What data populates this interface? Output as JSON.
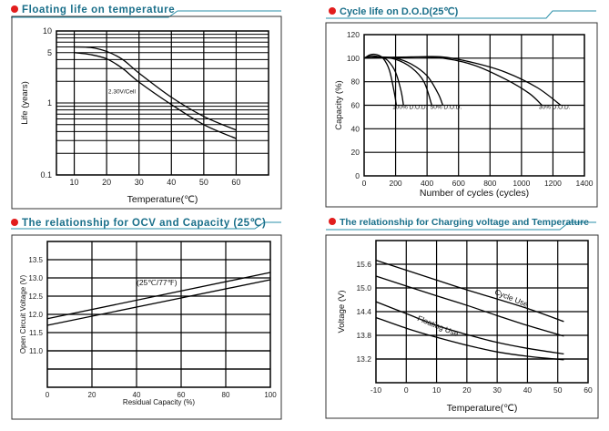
{
  "colors": {
    "title": "#1a6f8a",
    "bullet": "#e21d1d",
    "line": "#000000"
  },
  "chart_data": [
    {
      "id": "c1",
      "type": "line",
      "title": "Floating life on temperature",
      "xlabel": "Temperature(℃)",
      "ylabel": "Life (years)",
      "xlim": [
        4.5,
        70
      ],
      "ylim": [
        0.1,
        10
      ],
      "yscale": "log",
      "grid": true,
      "xticks": [
        10,
        20,
        30,
        40,
        50,
        60
      ],
      "yticks": [
        0.1,
        1,
        5,
        10
      ],
      "annotations": [
        {
          "text": "2.30V/Cell",
          "x": 20.5,
          "y": 1.35
        }
      ],
      "series": [
        {
          "x": [
            10,
            15,
            20,
            25,
            30,
            40,
            50,
            60
          ],
          "y": [
            6.0,
            5.9,
            5.2,
            4.0,
            2.6,
            1.2,
            0.65,
            0.42
          ]
        },
        {
          "x": [
            10,
            15,
            20,
            25,
            30,
            40,
            50,
            60
          ],
          "y": [
            5.0,
            4.7,
            4.1,
            3.0,
            1.95,
            0.95,
            0.5,
            0.32
          ]
        }
      ]
    },
    {
      "id": "c2",
      "type": "line",
      "title": "Cycle life on D.O.D(25℃)",
      "xlabel": "Number of cycles (cycles)",
      "ylabel": "Capacity (%)",
      "xlim": [
        0,
        1400
      ],
      "ylim": [
        0,
        120
      ],
      "grid": true,
      "xticks": [
        0,
        200,
        400,
        600,
        800,
        1000,
        1200,
        1400
      ],
      "yticks": [
        0,
        20,
        40,
        60,
        80,
        100,
        120
      ],
      "annotations": [
        {
          "text": "100% D.O.D.",
          "x": 180,
          "y": 57
        },
        {
          "text": "50% D.O.D.",
          "x": 420,
          "y": 57
        },
        {
          "text": "30% D.O.D.",
          "x": 1110,
          "y": 57
        }
      ],
      "series": [
        {
          "x": [
            0,
            40,
            80,
            120,
            160,
            190,
            205
          ],
          "y": [
            100,
            103,
            103,
            100,
            90,
            72,
            60
          ]
        },
        {
          "x": [
            0,
            50,
            100,
            150,
            200,
            235,
            250
          ],
          "y": [
            100,
            102,
            101,
            98,
            88,
            72,
            60
          ]
        },
        {
          "x": [
            0,
            100,
            200,
            300,
            380,
            430
          ],
          "y": [
            100,
            101,
            99,
            92,
            80,
            60
          ]
        },
        {
          "x": [
            0,
            100,
            200,
            300,
            400,
            470,
            500
          ],
          "y": [
            100,
            101,
            100,
            95,
            85,
            70,
            60
          ]
        },
        {
          "x": [
            0,
            300,
            500,
            700,
            900,
            1050,
            1130
          ],
          "y": [
            100,
            101,
            100,
            94,
            82,
            70,
            60
          ]
        },
        {
          "x": [
            0,
            300,
            500,
            700,
            900,
            1100,
            1250
          ],
          "y": [
            100,
            101,
            101,
            96,
            88,
            75,
            60
          ]
        }
      ]
    },
    {
      "id": "c3",
      "type": "line",
      "title": "The relationship  for OCV and Capacity (25℃)",
      "xlabel": "Residual Capacity (%)",
      "ylabel": "Open Circuit Voltage (V)",
      "xlim": [
        0,
        100
      ],
      "ylim": [
        10,
        14
      ],
      "grid": true,
      "xticks": [
        0,
        20,
        40,
        60,
        80,
        100
      ],
      "yticks": [
        11.0,
        11.5,
        12.0,
        12.5,
        13.0,
        13.5
      ],
      "annotations": [
        {
          "text": "(25℃/77℉)",
          "x": 40,
          "y": 12.8
        }
      ],
      "series": [
        {
          "x": [
            0,
            100
          ],
          "y": [
            11.88,
            13.15
          ]
        },
        {
          "x": [
            0,
            100
          ],
          "y": [
            11.7,
            12.95
          ]
        }
      ]
    },
    {
      "id": "c4",
      "type": "line",
      "title": "The relationship for Charging voltage and Temperature",
      "xlabel": "Temperature(℃)",
      "ylabel": "Voltage (V)",
      "xlim": [
        -10,
        60
      ],
      "ylim": [
        12.6,
        16.2
      ],
      "grid": true,
      "xticks": [
        -10,
        0,
        10,
        20,
        30,
        40,
        50,
        60
      ],
      "yticks": [
        13.2,
        13.8,
        14.4,
        15.0,
        15.6
      ],
      "annotations": [
        {
          "text": "Cycle Use",
          "x": 29,
          "y": 14.85,
          "angle": 22
        },
        {
          "text": "Floating Use",
          "x": 3.5,
          "y": 14.18,
          "angle": 22
        }
      ],
      "series": [
        {
          "x": [
            -10,
            0,
            10,
            20,
            30,
            40,
            52
          ],
          "y": [
            15.7,
            15.45,
            15.2,
            14.95,
            14.72,
            14.48,
            14.15
          ]
        },
        {
          "x": [
            -10,
            0,
            10,
            20,
            30,
            40,
            52
          ],
          "y": [
            15.3,
            15.05,
            14.8,
            14.56,
            14.3,
            14.05,
            13.78
          ]
        },
        {
          "x": [
            -10,
            0,
            10,
            20,
            30,
            40,
            52
          ],
          "y": [
            14.65,
            14.35,
            14.05,
            13.82,
            13.62,
            13.47,
            13.33
          ]
        },
        {
          "x": [
            -10,
            0,
            10,
            20,
            30,
            40,
            52
          ],
          "y": [
            14.25,
            13.98,
            13.75,
            13.55,
            13.38,
            13.27,
            13.18
          ]
        }
      ]
    }
  ]
}
